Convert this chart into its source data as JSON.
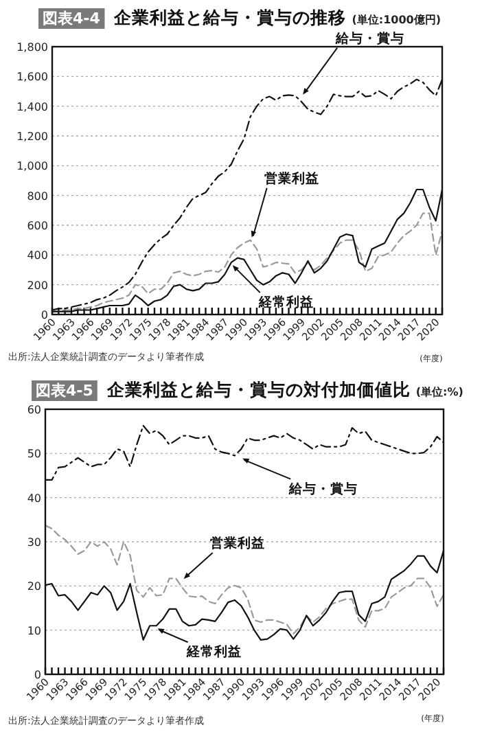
{
  "chart_data": [
    {
      "type": "line",
      "title": "図表4-4",
      "subtitle": "企業利益と給与・賞与の推移",
      "ylabel": "(単位:1000億円)",
      "x": [
        1960,
        1961,
        1962,
        1963,
        1964,
        1965,
        1966,
        1967,
        1968,
        1969,
        1970,
        1971,
        1972,
        1973,
        1974,
        1975,
        1976,
        1977,
        1978,
        1979,
        1980,
        1981,
        1982,
        1983,
        1984,
        1985,
        1986,
        1987,
        1988,
        1989,
        1990,
        1991,
        1992,
        1993,
        1994,
        1995,
        1996,
        1997,
        1998,
        1999,
        2000,
        2001,
        2002,
        2003,
        2004,
        2005,
        2006,
        2007,
        2008,
        2009,
        2010,
        2011,
        2012,
        2013,
        2014,
        2015,
        2016,
        2017,
        2018,
        2019,
        2020,
        2021
      ],
      "series": [
        {
          "color": "#111111",
          "line_style": "dashdot",
          "values": [
            30,
            40,
            40,
            50,
            60,
            70,
            80,
            100,
            110,
            130,
            160,
            185,
            215,
            270,
            350,
            420,
            470,
            510,
            540,
            600,
            650,
            720,
            780,
            800,
            820,
            880,
            930,
            960,
            1010,
            1100,
            1180,
            1330,
            1400,
            1450,
            1465,
            1440,
            1470,
            1475,
            1470,
            1430,
            1380,
            1360,
            1345,
            1400,
            1480,
            1470,
            1465,
            1465,
            1500,
            1465,
            1470,
            1505,
            1480,
            1450,
            1500,
            1530,
            1550,
            1580,
            1560,
            1510,
            1470,
            1580
          ]
        },
        {
          "color": "#999999",
          "line_style": "dashed",
          "values": [
            20,
            20,
            30,
            30,
            40,
            40,
            50,
            60,
            80,
            90,
            100,
            110,
            130,
            200,
            190,
            140,
            170,
            170,
            210,
            280,
            290,
            270,
            260,
            270,
            290,
            295,
            285,
            320,
            400,
            450,
            480,
            500,
            440,
            320,
            330,
            350,
            345,
            340,
            280,
            300,
            350,
            300,
            330,
            380,
            430,
            480,
            500,
            500,
            430,
            290,
            310,
            390,
            400,
            420,
            480,
            530,
            560,
            600,
            680,
            680,
            400,
            560
          ]
        },
        {
          "color": "#111111",
          "line_style": "solid",
          "values": [
            20,
            20,
            20,
            20,
            30,
            30,
            30,
            40,
            50,
            60,
            60,
            60,
            70,
            130,
            100,
            60,
            90,
            100,
            130,
            190,
            200,
            170,
            160,
            170,
            210,
            210,
            220,
            270,
            350,
            380,
            370,
            300,
            230,
            200,
            220,
            260,
            280,
            270,
            210,
            280,
            360,
            280,
            310,
            360,
            440,
            520,
            540,
            530,
            350,
            320,
            440,
            460,
            480,
            560,
            640,
            680,
            750,
            840,
            840,
            720,
            630,
            840
          ]
        }
      ],
      "xlim": [
        1960,
        2021
      ],
      "xticks": [
        1960,
        {
          "value": 1961,
          "label": null
        },
        {
          "value": 1962,
          "label": null
        },
        1963,
        {
          "value": 1964,
          "label": null
        },
        {
          "value": 1965,
          "label": null
        },
        1966,
        {
          "value": 1967,
          "label": null
        },
        {
          "value": 1968,
          "label": null
        },
        1969,
        {
          "value": 1970,
          "label": null
        },
        {
          "value": 1971,
          "label": null
        },
        1972,
        {
          "value": 1973,
          "label": null
        },
        {
          "value": 1974,
          "label": null
        },
        1975,
        {
          "value": 1976,
          "label": null
        },
        {
          "value": 1977,
          "label": null
        },
        1978,
        {
          "value": 1979,
          "label": null
        },
        {
          "value": 1980,
          "label": null
        },
        1981,
        {
          "value": 1982,
          "label": null
        },
        {
          "value": 1983,
          "label": null
        },
        1984,
        {
          "value": 1985,
          "label": null
        },
        {
          "value": 1986,
          "label": null
        },
        1987,
        {
          "value": 1988,
          "label": null
        },
        {
          "value": 1989,
          "label": null
        },
        1990,
        {
          "value": 1991,
          "label": null
        },
        {
          "value": 1992,
          "label": null
        },
        1993,
        {
          "value": 1994,
          "label": null
        },
        {
          "value": 1995,
          "label": null
        },
        1996,
        {
          "value": 1997,
          "label": null
        },
        {
          "value": 1998,
          "label": null
        },
        1999,
        {
          "value": 2000,
          "label": null
        },
        {
          "value": 2001,
          "label": null
        },
        2002,
        {
          "value": 2003,
          "label": null
        },
        {
          "value": 2004,
          "label": null
        },
        2005,
        {
          "value": 2006,
          "label": null
        },
        {
          "value": 2007,
          "label": null
        },
        2008,
        {
          "value": 2009,
          "label": null
        },
        {
          "value": 2010,
          "label": null
        },
        2011,
        {
          "value": 2012,
          "label": null
        },
        {
          "value": 2013,
          "label": null
        },
        2014,
        {
          "value": 2015,
          "label": null
        },
        {
          "value": 2016,
          "label": null
        },
        2017,
        {
          "value": 2018,
          "label": null
        },
        {
          "value": 2019,
          "label": null
        },
        2020,
        {
          "value": 2021,
          "label": null
        }
      ],
      "ylim": [
        0,
        1800
      ],
      "yticks": [
        0,
        200,
        400,
        600,
        800,
        {
          "value": 1000,
          "label": "1,000"
        },
        {
          "value": 1200,
          "label": "1,200"
        },
        {
          "value": 1400,
          "label": "1,400"
        },
        {
          "value": 1600,
          "label": "1,600"
        },
        {
          "value": 1800,
          "label": "1,800"
        }
      ],
      "grid": "y",
      "annotations": [
        {
          "text": "給与・賞与",
          "x": 1999,
          "y": 1460
        },
        {
          "text": "営業利益",
          "x": 1991,
          "y": 500
        },
        {
          "text": "経常利益",
          "x": 1988,
          "y": 350
        },
        "(年度)",
        "出所:法人企業統計調査のデータより筆者作成"
      ]
    },
    {
      "type": "line",
      "title": "図表4-5",
      "subtitle": "企業利益と給与・賞与の対付加価値比",
      "ylabel": "(単位:%)",
      "x": [
        1960,
        1961,
        1962,
        1963,
        1964,
        1965,
        1966,
        1967,
        1968,
        1969,
        1970,
        1971,
        1972,
        1973,
        1974,
        1975,
        1976,
        1977,
        1978,
        1979,
        1980,
        1981,
        1982,
        1983,
        1984,
        1985,
        1986,
        1987,
        1988,
        1989,
        1990,
        1991,
        1992,
        1993,
        1994,
        1995,
        1996,
        1997,
        1998,
        1999,
        2000,
        2001,
        2002,
        2003,
        2004,
        2005,
        2006,
        2007,
        2008,
        2009,
        2010,
        2011,
        2012,
        2013,
        2014,
        2015,
        2016,
        2017,
        2018,
        2019,
        2020,
        2021
      ],
      "series": [
        {
          "color": "#111111",
          "line_style": "dashdot",
          "values": [
            44,
            44,
            46.8,
            47,
            48,
            49,
            48,
            47,
            47.5,
            47.5,
            49,
            51,
            50.5,
            47,
            52,
            56.3,
            54.5,
            55.2,
            54,
            52,
            53,
            54,
            54,
            53.5,
            53.5,
            54,
            51,
            50.3,
            50,
            49.5,
            51,
            53.5,
            53,
            53,
            53.5,
            54,
            53.5,
            54.5,
            53.5,
            53,
            52,
            51,
            52,
            51.5,
            51.5,
            51.5,
            52,
            55.8,
            54.5,
            55,
            53,
            52.5,
            52,
            51.5,
            51,
            50.5,
            50,
            50,
            50.2,
            51.5,
            53.8,
            52.5
          ]
        },
        {
          "color": "#999999",
          "line_style": "dashed",
          "values": [
            33.7,
            33,
            31.5,
            30.5,
            29,
            27.2,
            28,
            30,
            29,
            30,
            28.4,
            24.8,
            30,
            26.9,
            19,
            17.5,
            19.6,
            17.8,
            18,
            21.7,
            21.7,
            19.6,
            17.7,
            17.5,
            17.7,
            16.5,
            16,
            18,
            19.6,
            20.1,
            19.6,
            17,
            12.3,
            11.8,
            12.3,
            12.3,
            11.8,
            11.3,
            9.2,
            10.7,
            13.3,
            11.8,
            13,
            14.9,
            16,
            16.5,
            17,
            17,
            12.3,
            10.7,
            14.4,
            14.4,
            14.9,
            17.5,
            18.5,
            19.6,
            20.1,
            21.7,
            21.7,
            19.6,
            15.4,
            18
          ]
        },
        {
          "color": "#111111",
          "line_style": "solid",
          "values": [
            20.2,
            20.5,
            17.8,
            18,
            16.5,
            14.5,
            16.5,
            18.5,
            18,
            20,
            18.5,
            14.5,
            16.5,
            20.5,
            14,
            7.8,
            11,
            11,
            12.5,
            14.8,
            14.8,
            12,
            11,
            11.2,
            12.5,
            12.3,
            12,
            14,
            16.3,
            16.8,
            15.5,
            13,
            10,
            7.8,
            8,
            9,
            10.3,
            10,
            8,
            10,
            13.3,
            11,
            12.3,
            14,
            16.5,
            18.5,
            18.8,
            18.8,
            13.5,
            12,
            16,
            16.5,
            17.5,
            21.5,
            22.5,
            23.5,
            25,
            26.8,
            26.8,
            24.5,
            23,
            28
          ]
        }
      ],
      "xlim": [
        1960,
        2021
      ],
      "xticks": [
        1960,
        {
          "value": 1961,
          "label": null
        },
        {
          "value": 1962,
          "label": null
        },
        1963,
        {
          "value": 1964,
          "label": null
        },
        {
          "value": 1965,
          "label": null
        },
        1966,
        {
          "value": 1967,
          "label": null
        },
        {
          "value": 1968,
          "label": null
        },
        1969,
        {
          "value": 1970,
          "label": null
        },
        {
          "value": 1971,
          "label": null
        },
        1972,
        {
          "value": 1973,
          "label": null
        },
        {
          "value": 1974,
          "label": null
        },
        1975,
        {
          "value": 1976,
          "label": null
        },
        {
          "value": 1977,
          "label": null
        },
        1978,
        {
          "value": 1979,
          "label": null
        },
        {
          "value": 1980,
          "label": null
        },
        1981,
        {
          "value": 1982,
          "label": null
        },
        {
          "value": 1983,
          "label": null
        },
        1984,
        {
          "value": 1985,
          "label": null
        },
        {
          "value": 1986,
          "label": null
        },
        1987,
        {
          "value": 1988,
          "label": null
        },
        {
          "value": 1989,
          "label": null
        },
        1990,
        {
          "value": 1991,
          "label": null
        },
        {
          "value": 1992,
          "label": null
        },
        1993,
        {
          "value": 1994,
          "label": null
        },
        {
          "value": 1995,
          "label": null
        },
        1996,
        {
          "value": 1997,
          "label": null
        },
        {
          "value": 1998,
          "label": null
        },
        1999,
        {
          "value": 2000,
          "label": null
        },
        {
          "value": 2001,
          "label": null
        },
        2002,
        {
          "value": 2003,
          "label": null
        },
        {
          "value": 2004,
          "label": null
        },
        2005,
        {
          "value": 2006,
          "label": null
        },
        {
          "value": 2007,
          "label": null
        },
        2008,
        {
          "value": 2009,
          "label": null
        },
        {
          "value": 2010,
          "label": null
        },
        2011,
        {
          "value": 2012,
          "label": null
        },
        {
          "value": 2013,
          "label": null
        },
        2014,
        {
          "value": 2015,
          "label": null
        },
        {
          "value": 2016,
          "label": null
        },
        2017,
        {
          "value": 2018,
          "label": null
        },
        {
          "value": 2019,
          "label": null
        },
        2020,
        {
          "value": 2021,
          "label": null
        }
      ],
      "ylim": [
        0,
        60
      ],
      "yticks": [
        0,
        10,
        20,
        30,
        40,
        50,
        60
      ],
      "grid": "y",
      "annotations": [
        {
          "text": "給与・賞与",
          "x": 1990,
          "y": 49.5
        },
        {
          "text": "営業利益",
          "x": 1981,
          "y": 21
        },
        {
          "text": "経常利益",
          "x": 1977,
          "y": 11
        },
        "(年度)",
        "出所:法人企業統計調査のデータより筆者作成"
      ]
    }
  ]
}
